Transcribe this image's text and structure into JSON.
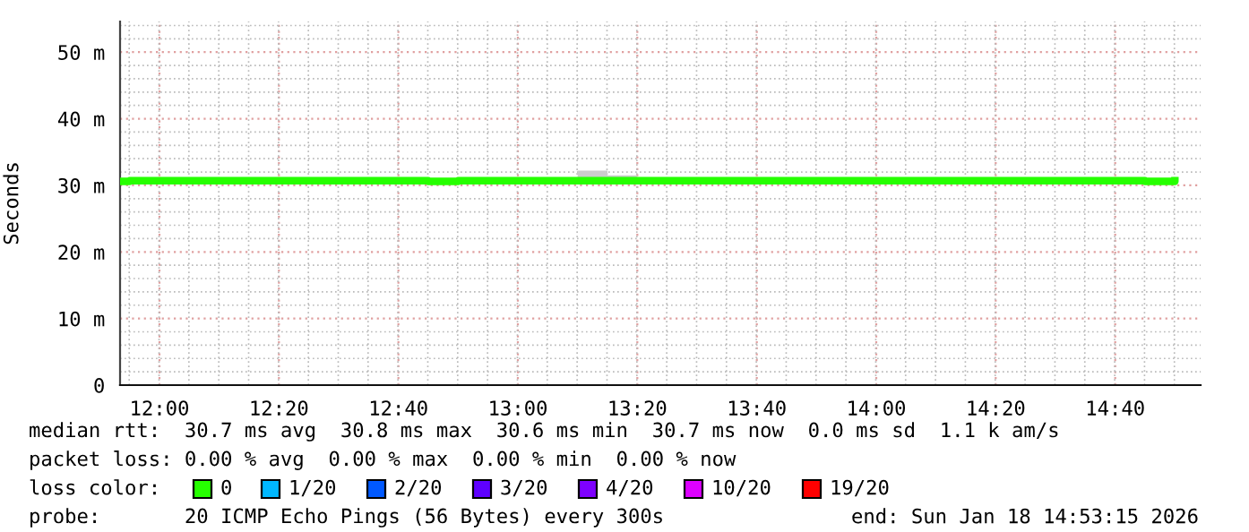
{
  "chart_data": {
    "type": "step",
    "ylabel": "Seconds",
    "legend_title": "loss color:",
    "annotations": [
      "median rtt:  30.7 ms avg  30.8 ms max  30.6 ms min  30.7 ms now  0.0 ms sd  1.1 k am/s",
      "packet loss: 0.00 % avg  0.00 % max  0.00 % min  0.00 % now",
      "probe:       20 ICMP Echo Pings (56 Bytes) every 300s",
      "end: Sun Jan 18 14:53:15 2026"
    ],
    "x": [
      11.9,
      11.9167,
      12.0,
      12.0833,
      12.1667,
      12.25,
      12.3333,
      12.4167,
      12.5,
      12.5833,
      12.6667,
      12.75,
      12.8333,
      12.9167,
      13.0,
      13.0833,
      13.1667,
      13.25,
      13.3333,
      13.4167,
      13.5,
      13.5833,
      13.6667,
      13.75,
      13.8333,
      13.9167,
      14.0,
      14.0833,
      14.1667,
      14.25,
      14.3333,
      14.4167,
      14.5,
      14.5833,
      14.6667,
      14.75,
      14.8333
    ],
    "series": [
      {
        "name": "0",
        "color": "#26ff00",
        "values": [
          30.6,
          30.7,
          30.7,
          30.7,
          30.7,
          30.7,
          30.7,
          30.7,
          30.7,
          30.7,
          30.7,
          30.6,
          30.7,
          30.7,
          30.7,
          30.7,
          30.7,
          30.7,
          30.7,
          30.7,
          30.7,
          30.7,
          30.7,
          30.7,
          30.7,
          30.7,
          30.7,
          30.7,
          30.7,
          30.7,
          30.7,
          30.7,
          30.7,
          30.7,
          30.7,
          30.6,
          30.7
        ],
        "lower": [
          null,
          null,
          null,
          null,
          null,
          null,
          null,
          null,
          null,
          null,
          null,
          null,
          null,
          null,
          null,
          null,
          30.7,
          30.7,
          30.7,
          null,
          null,
          null,
          null,
          null,
          null,
          null,
          null,
          null,
          null,
          null,
          null,
          null,
          null,
          30.7,
          30.7,
          null,
          null
        ],
        "upper": [
          null,
          null,
          null,
          null,
          null,
          null,
          null,
          null,
          null,
          null,
          null,
          null,
          null,
          null,
          null,
          null,
          32.2,
          31.5,
          31.5,
          null,
          null,
          null,
          null,
          null,
          null,
          null,
          null,
          null,
          null,
          null,
          null,
          null,
          null,
          31.2,
          31.2,
          null,
          null
        ]
      },
      {
        "name": "1/20",
        "color": "#00b8ff",
        "values": [
          null,
          null,
          null,
          null,
          null,
          null,
          null,
          null,
          null,
          null,
          null,
          null,
          null,
          null,
          null,
          null,
          null,
          null,
          null,
          null,
          null,
          null,
          null,
          null,
          null,
          null,
          null,
          null,
          null,
          null,
          null,
          null,
          null,
          null,
          null,
          null,
          null
        ]
      },
      {
        "name": "2/20",
        "color": "#0059ff",
        "values": [
          null,
          null,
          null,
          null,
          null,
          null,
          null,
          null,
          null,
          null,
          null,
          null,
          null,
          null,
          null,
          null,
          null,
          null,
          null,
          null,
          null,
          null,
          null,
          null,
          null,
          null,
          null,
          null,
          null,
          null,
          null,
          null,
          null,
          null,
          null,
          null,
          null
        ]
      },
      {
        "name": "3/20",
        "color": "#5e00ff",
        "values": [
          null,
          null,
          null,
          null,
          null,
          null,
          null,
          null,
          null,
          null,
          null,
          null,
          null,
          null,
          null,
          null,
          null,
          null,
          null,
          null,
          null,
          null,
          null,
          null,
          null,
          null,
          null,
          null,
          null,
          null,
          null,
          null,
          null,
          null,
          null,
          null,
          null
        ]
      },
      {
        "name": "4/20",
        "color": "#7e00ff",
        "values": [
          null,
          null,
          null,
          null,
          null,
          null,
          null,
          null,
          null,
          null,
          null,
          null,
          null,
          null,
          null,
          null,
          null,
          null,
          null,
          null,
          null,
          null,
          null,
          null,
          null,
          null,
          null,
          null,
          null,
          null,
          null,
          null,
          null,
          null,
          null,
          null,
          null
        ]
      },
      {
        "name": "10/20",
        "color": "#dd00ff",
        "values": [
          null,
          null,
          null,
          null,
          null,
          null,
          null,
          null,
          null,
          null,
          null,
          null,
          null,
          null,
          null,
          null,
          null,
          null,
          null,
          null,
          null,
          null,
          null,
          null,
          null,
          null,
          null,
          null,
          null,
          null,
          null,
          null,
          null,
          null,
          null,
          null,
          null
        ]
      },
      {
        "name": "19/20",
        "color": "#ff0000",
        "values": [
          null,
          null,
          null,
          null,
          null,
          null,
          null,
          null,
          null,
          null,
          null,
          null,
          null,
          null,
          null,
          null,
          null,
          null,
          null,
          null,
          null,
          null,
          null,
          null,
          null,
          null,
          null,
          null,
          null,
          null,
          null,
          null,
          null,
          null,
          null,
          null,
          null
        ]
      }
    ],
    "xlim": [
      11.89,
      14.905
    ],
    "xticks": [
      {
        "value": 12.0,
        "label": "12:00"
      },
      {
        "value": 12.3333,
        "label": "12:20"
      },
      {
        "value": 12.6667,
        "label": "12:40"
      },
      {
        "value": 13.0,
        "label": "13:00"
      },
      {
        "value": 13.3333,
        "label": "13:20"
      },
      {
        "value": 13.6667,
        "label": "13:40"
      },
      {
        "value": 14.0,
        "label": "14:00"
      },
      {
        "value": 14.3333,
        "label": "14:20"
      },
      {
        "value": 14.6667,
        "label": "14:40"
      }
    ],
    "ylim": [
      0,
      54.6
    ],
    "yticks": [
      0,
      {
        "value": 10,
        "label": "10 m"
      },
      {
        "value": 20,
        "label": "20 m"
      },
      {
        "value": 30,
        "label": "30 m"
      },
      {
        "value": 40,
        "label": "40 m"
      },
      {
        "value": 50,
        "label": "50 m"
      }
    ],
    "grid": true,
    "legend": "bottom"
  }
}
